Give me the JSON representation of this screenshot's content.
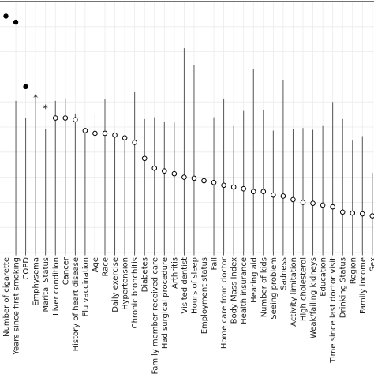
{
  "chart_data": {
    "type": "scatter",
    "title": "",
    "xlabel": "",
    "ylabel": "",
    "grid": true,
    "legend": "none",
    "ylim": [
      0,
      100
    ],
    "colors": {
      "background": "#ffffff",
      "grid": "#ebebeb",
      "ci_line": "#555555",
      "point_stroke": "#000000",
      "point_fill_hollow": "#ffffff",
      "point_fill_solid": "#000000",
      "top_border": "#444444"
    },
    "point_styles": [
      "solid",
      "solid",
      "solid",
      "star",
      "star",
      "hollow"
    ],
    "categories": [
      "Number of cigarette",
      "Years since first smoking",
      "COPD",
      "Emphysema",
      "Marital Status",
      "Liver condition",
      "Cancer",
      "History of heart disease",
      "Flu vaccination",
      "Age",
      "Race",
      "Daily exercise",
      "Hypertension",
      "Chronic bronchitis",
      "Diabetes",
      "Family member received care",
      "Had surgical procedure",
      "Arthritis",
      "Visited dentist",
      "Hours of sleep",
      "Employment status",
      "Fall",
      "Home care from doctor",
      "Body Mass Index",
      "Health insurance",
      "Hearing aid",
      "Number of kids",
      "Seeing problem",
      "Sadness",
      "Activity limitation",
      "High cholesterol",
      "Weak/failing kidneys",
      "Education",
      "Time since last doctor visit",
      "Drinking Status",
      "Region",
      "Family income",
      "Sex"
    ],
    "points": [
      {
        "style": "solid",
        "value": 94.2,
        "lower": 94.2,
        "upper": 94.2
      },
      {
        "style": "solid",
        "value": 91.8,
        "lower": 0,
        "upper": 60.4
      },
      {
        "style": "solid",
        "value": 66.1,
        "lower": 0,
        "upper": 53.6
      },
      {
        "style": "star",
        "value": 61.8,
        "lower": 0,
        "upper": 61.8
      },
      {
        "style": "star",
        "value": 57.5,
        "lower": 0,
        "upper": 49.3
      },
      {
        "style": "hollow",
        "value": 53.6,
        "lower": 0,
        "upper": 60.4
      },
      {
        "style": "hollow",
        "value": 53.6,
        "lower": 0,
        "upper": 61.4
      },
      {
        "style": "hollow",
        "value": 52.9,
        "lower": 0,
        "upper": 55.4
      },
      {
        "style": "hollow",
        "value": 48.6,
        "lower": 0,
        "upper": 47.5
      },
      {
        "style": "hollow",
        "value": 47.5,
        "lower": 0,
        "upper": 55.0
      },
      {
        "style": "hollow",
        "value": 47.5,
        "lower": 0,
        "upper": 61.1
      },
      {
        "style": "hollow",
        "value": 46.8,
        "lower": 0,
        "upper": 46.8
      },
      {
        "style": "hollow",
        "value": 45.7,
        "lower": 0,
        "upper": 45.7
      },
      {
        "style": "hollow",
        "value": 43.9,
        "lower": 0,
        "upper": 63.9
      },
      {
        "style": "hollow",
        "value": 37.5,
        "lower": 0,
        "upper": 53.2
      },
      {
        "style": "hollow",
        "value": 33.6,
        "lower": 0,
        "upper": 53.9
      },
      {
        "style": "hollow",
        "value": 32.5,
        "lower": 0,
        "upper": 52.1
      },
      {
        "style": "hollow",
        "value": 31.4,
        "lower": 0,
        "upper": 51.8
      },
      {
        "style": "hollow",
        "value": 30.0,
        "lower": 0,
        "upper": 81.4
      },
      {
        "style": "hollow",
        "value": 29.6,
        "lower": 0,
        "upper": 74.6
      },
      {
        "style": "hollow",
        "value": 28.6,
        "lower": 0,
        "upper": 55.7
      },
      {
        "style": "hollow",
        "value": 27.9,
        "lower": 0,
        "upper": 53.9
      },
      {
        "style": "hollow",
        "value": 26.8,
        "lower": 0,
        "upper": 61.1
      },
      {
        "style": "hollow",
        "value": 26.1,
        "lower": 0,
        "upper": 50.4
      },
      {
        "style": "hollow",
        "value": 25.4,
        "lower": 0,
        "upper": 56.4
      },
      {
        "style": "hollow",
        "value": 24.3,
        "lower": 0,
        "upper": 73.2
      },
      {
        "style": "hollow",
        "value": 24.3,
        "lower": 0,
        "upper": 56.8
      },
      {
        "style": "hollow",
        "value": 22.9,
        "lower": 0,
        "upper": 48.6
      },
      {
        "style": "hollow",
        "value": 22.5,
        "lower": 0,
        "upper": 68.6
      },
      {
        "style": "hollow",
        "value": 21.1,
        "lower": 0,
        "upper": 49.3
      },
      {
        "style": "hollow",
        "value": 20.0,
        "lower": 0,
        "upper": 49.6
      },
      {
        "style": "hollow",
        "value": 19.6,
        "lower": 0,
        "upper": 48.9
      },
      {
        "style": "hollow",
        "value": 18.9,
        "lower": 0,
        "upper": 50.4
      },
      {
        "style": "hollow",
        "value": 18.2,
        "lower": 0,
        "upper": 60.0
      },
      {
        "style": "hollow",
        "value": 16.1,
        "lower": 0,
        "upper": 53.2
      },
      {
        "style": "hollow",
        "value": 15.7,
        "lower": 0,
        "upper": 44.6
      },
      {
        "style": "hollow",
        "value": 15.4,
        "lower": 0,
        "upper": 46.4
      },
      {
        "style": "hollow",
        "value": 14.6,
        "lower": 0,
        "upper": 31.8
      }
    ]
  }
}
